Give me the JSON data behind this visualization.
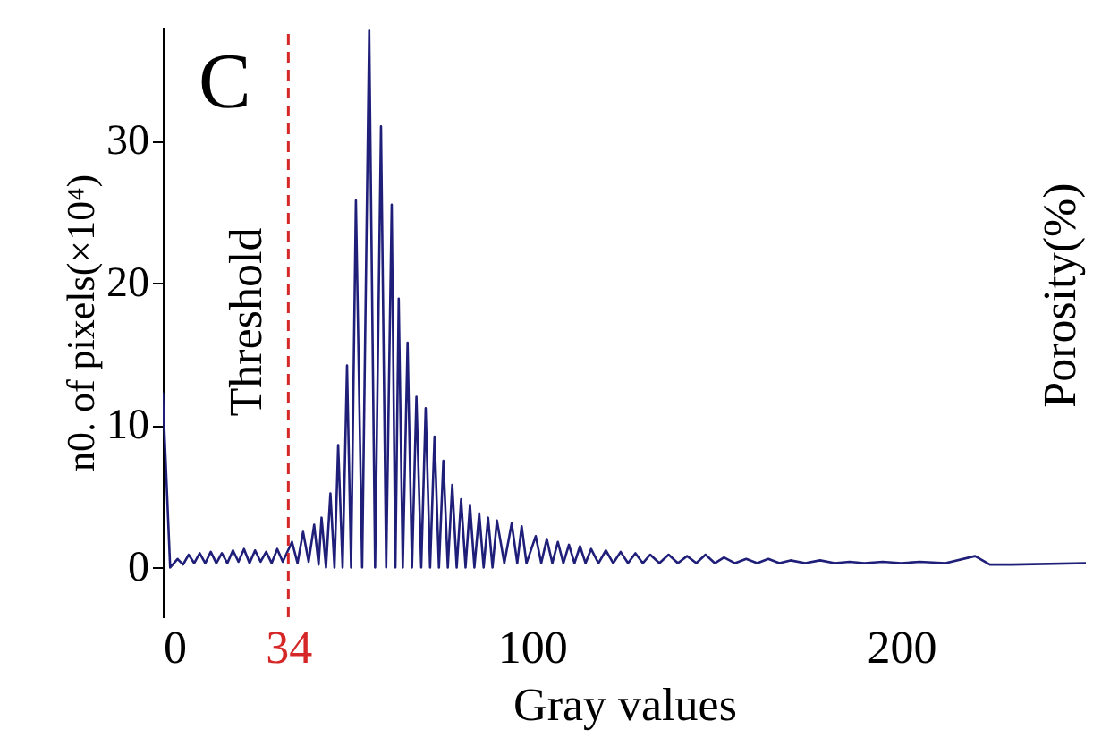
{
  "chart_data": {
    "type": "line",
    "xlabel": "Gray values",
    "ylabel": "n0. of pixels(×10⁴)",
    "y2label": "Porosity(%)",
    "annotations": [
      "C"
    ],
    "series": [
      {
        "color": "#1f1f7a",
        "x": [
          0,
          2,
          4,
          5.5,
          7,
          8.5,
          10,
          11.5,
          13,
          14.5,
          16,
          17.5,
          19,
          20.5,
          22,
          23.5,
          25,
          26.5,
          28,
          29.5,
          31,
          32.5,
          35,
          36.5,
          38,
          39.5,
          41,
          42.2,
          43,
          44.2,
          45.4,
          46.5,
          47.5,
          48.7,
          49.9,
          51,
          52.3,
          54,
          55.9,
          57.5,
          59.1,
          60.5,
          62,
          63,
          63.9,
          65,
          66.3,
          67.5,
          68.7,
          70,
          71.2,
          72.4,
          73.6,
          74.8,
          76,
          77.2,
          78.4,
          79.6,
          80.8,
          82,
          83.2,
          84.4,
          85.7,
          86.9,
          88.1,
          89.3,
          90.5,
          92.5,
          94.5,
          96,
          97.2,
          98.5,
          101,
          102.5,
          104,
          105.5,
          107,
          108.5,
          110,
          111.5,
          113,
          114.5,
          116,
          118,
          120,
          122,
          124,
          126,
          128,
          130,
          132,
          134.5,
          137,
          139.5,
          142,
          144.5,
          147,
          149.5,
          152,
          155,
          158,
          161,
          164,
          167,
          170,
          174,
          178,
          182,
          186,
          190,
          195,
          200,
          205,
          212,
          220,
          224,
          230,
          250
        ],
        "values": [
          12.3,
          0.0,
          0.6,
          0.2,
          0.9,
          0.3,
          1.0,
          0.3,
          1.1,
          0.3,
          1.0,
          0.3,
          1.2,
          0.4,
          1.3,
          0.3,
          1.2,
          0.4,
          1.1,
          0.3,
          1.3,
          0.4,
          1.8,
          0.3,
          2.5,
          0.4,
          3.0,
          0.2,
          3.5,
          0,
          5.2,
          0,
          8.6,
          0,
          14.2,
          0,
          25.8,
          0,
          37.8,
          0,
          31.0,
          0,
          25.5,
          0,
          18.9,
          0,
          15.8,
          0,
          12.0,
          0,
          11.2,
          0,
          9.2,
          0,
          7.5,
          0,
          5.8,
          0,
          4.8,
          0,
          4.4,
          0,
          3.8,
          0,
          3.5,
          0,
          3.3,
          0.3,
          3.1,
          0.3,
          2.9,
          0.3,
          2.2,
          0.3,
          2.0,
          0.3,
          1.8,
          0.3,
          1.6,
          0.3,
          1.5,
          0.3,
          1.3,
          0.3,
          1.2,
          0.3,
          1.1,
          0.3,
          1.0,
          0.3,
          0.9,
          0.3,
          0.9,
          0.3,
          0.8,
          0.3,
          0.9,
          0.3,
          0.7,
          0.3,
          0.6,
          0.3,
          0.6,
          0.3,
          0.5,
          0.3,
          0.5,
          0.3,
          0.4,
          0.3,
          0.4,
          0.3,
          0.4,
          0.3,
          0.8,
          0.2,
          0.2,
          0.3
        ]
      }
    ],
    "xlim": [
      0,
      250
    ],
    "xticks": [
      0,
      34,
      100,
      200
    ],
    "ylim": [
      -3.5,
      38
    ],
    "yticks": [
      0,
      10,
      20,
      30
    ],
    "ref_lines": [
      {
        "axis": "x",
        "value": 34,
        "label": "Threshold",
        "color": "#d62728",
        "line_style": "dashed"
      }
    ],
    "grid": false,
    "marker": "none",
    "line_style": "solid"
  }
}
